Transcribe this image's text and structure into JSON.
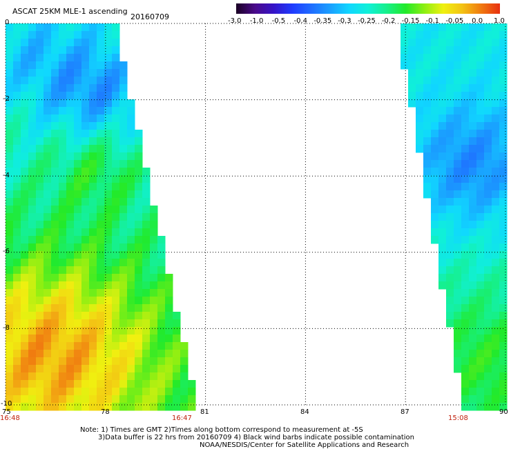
{
  "header": {
    "title": "ASCAT 25KM MLE-1 ascending",
    "date": "20160709"
  },
  "colorbar": {
    "labels": [
      "-3.0",
      "-1.0",
      "-0.5",
      "-0.4",
      "-0.35",
      "-0.3",
      "-0.25",
      "-0.2",
      "-0.15",
      "-0.1",
      "-0.05",
      "0.0",
      "1.0"
    ],
    "colors": [
      "#1a0024",
      "#4a0a8a",
      "#3514c8",
      "#1f3cff",
      "#1f6dff",
      "#1aa0ff",
      "#10d7ff",
      "#10f0d8",
      "#16f08a",
      "#22ea2a",
      "#8eef12",
      "#f0f010",
      "#f3c214",
      "#f07a10",
      "#e83010"
    ]
  },
  "axes": {
    "x_ticks": [
      "75",
      "78",
      "81",
      "84",
      "87",
      "90"
    ],
    "y_ticks": [
      "0",
      "-2",
      "-4",
      "-6",
      "-8",
      "-10"
    ],
    "xlim": [
      75,
      90
    ],
    "ylim": [
      -10,
      0
    ]
  },
  "swath_times": {
    "left_start": "16:48",
    "left_end": "16:47",
    "right": "15:08"
  },
  "notes": {
    "line1": "Note: 1) Times are GMT 2)Times along bottom correspond to measurement at -5S",
    "line2": "3)Data buffer is 22 hrs from 20160709 4) Black wind barbs indicate possible contamination",
    "line3": "NOAA/NESDIS/Center for Satellite Applications and Research"
  }
}
